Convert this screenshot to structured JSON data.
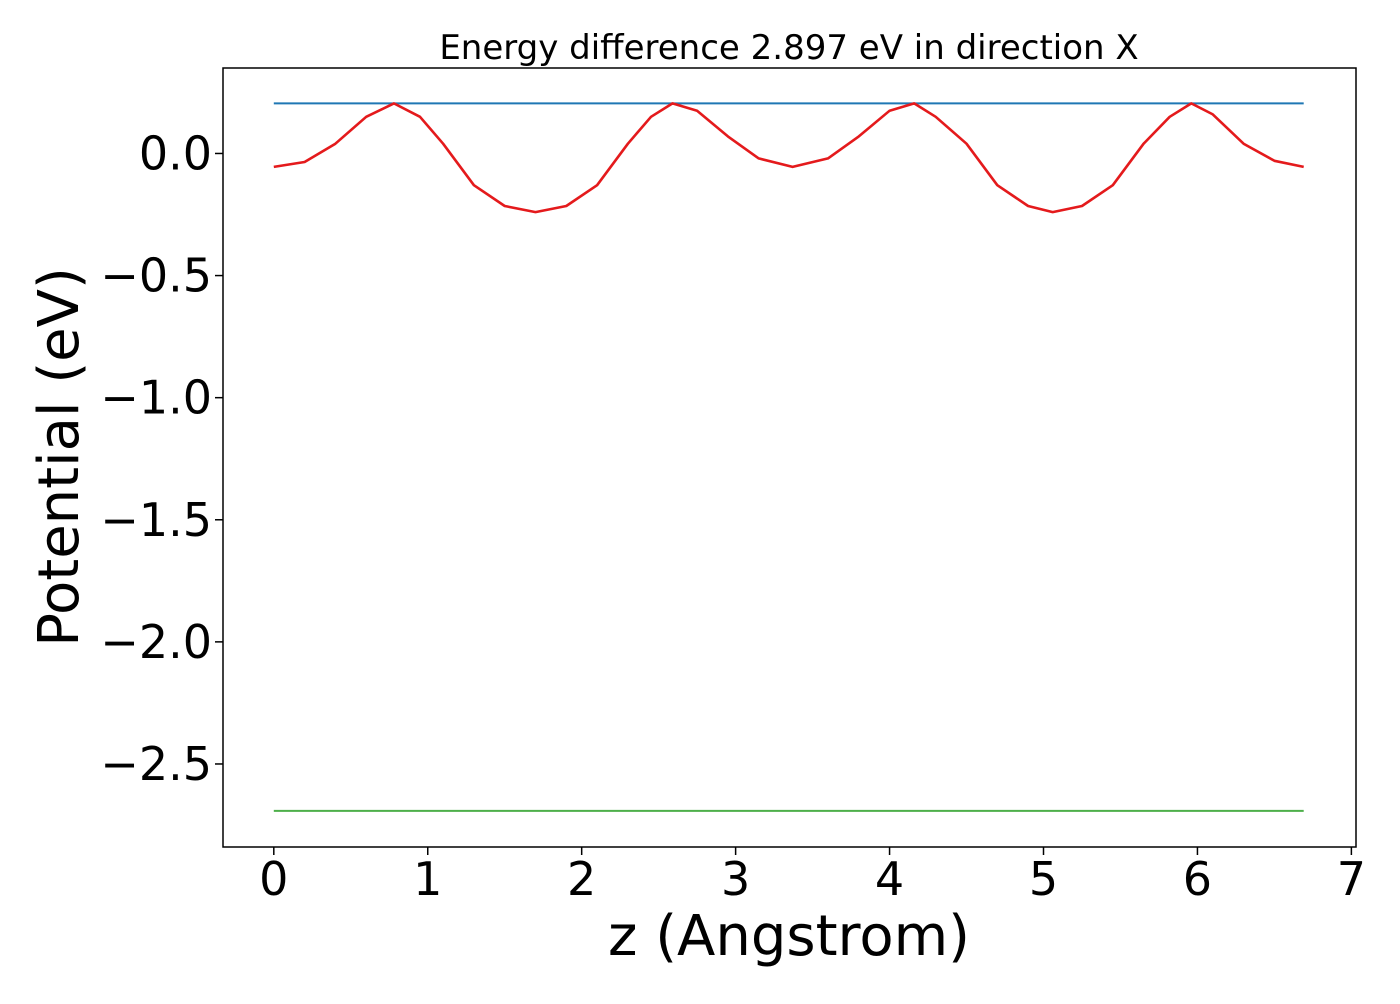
{
  "chart_data": {
    "type": "line",
    "title": "Energy difference 2.897 eV in direction X",
    "xlabel": "z (Angstrom)",
    "ylabel": "Potential (eV)",
    "xlim": [
      -0.33,
      7.03
    ],
    "ylim": [
      -2.84,
      0.35
    ],
    "grid": false,
    "x_ticks": [
      0,
      1,
      2,
      3,
      4,
      5,
      6,
      7
    ],
    "y_ticks": [
      0.0,
      -0.5,
      -1.0,
      -1.5,
      -2.0,
      -2.5
    ],
    "x_tick_labels": [
      "0",
      "1",
      "2",
      "3",
      "4",
      "5",
      "6",
      "7"
    ],
    "y_tick_labels": [
      "0.0",
      "−0.5",
      "−1.0",
      "−1.5",
      "−2.0",
      "−2.5"
    ],
    "series": [
      {
        "color": "#1f77b4",
        "x": [
          0,
          6.69
        ],
        "y": [
          0.205,
          0.205
        ]
      },
      {
        "color": "#e41a1c",
        "x": [
          0.0,
          0.2,
          0.4,
          0.6,
          0.78,
          0.95,
          1.1,
          1.3,
          1.5,
          1.7,
          1.9,
          2.1,
          2.3,
          2.45,
          2.59,
          2.75,
          2.95,
          3.15,
          3.37,
          3.6,
          3.8,
          4.0,
          4.16,
          4.3,
          4.5,
          4.7,
          4.9,
          5.06,
          5.25,
          5.45,
          5.65,
          5.82,
          5.96,
          6.1,
          6.3,
          6.5,
          6.69
        ],
        "y": [
          -0.055,
          -0.035,
          0.04,
          0.15,
          0.205,
          0.15,
          0.04,
          -0.13,
          -0.215,
          -0.24,
          -0.215,
          -0.13,
          0.04,
          0.15,
          0.205,
          0.175,
          0.07,
          -0.02,
          -0.055,
          -0.02,
          0.07,
          0.175,
          0.205,
          0.15,
          0.04,
          -0.13,
          -0.215,
          -0.24,
          -0.215,
          -0.13,
          0.04,
          0.15,
          0.205,
          0.16,
          0.04,
          -0.03,
          -0.055
        ]
      },
      {
        "color": "#4daf4a",
        "x": [
          0,
          6.69
        ],
        "y": [
          -2.692,
          -2.692
        ]
      }
    ]
  }
}
